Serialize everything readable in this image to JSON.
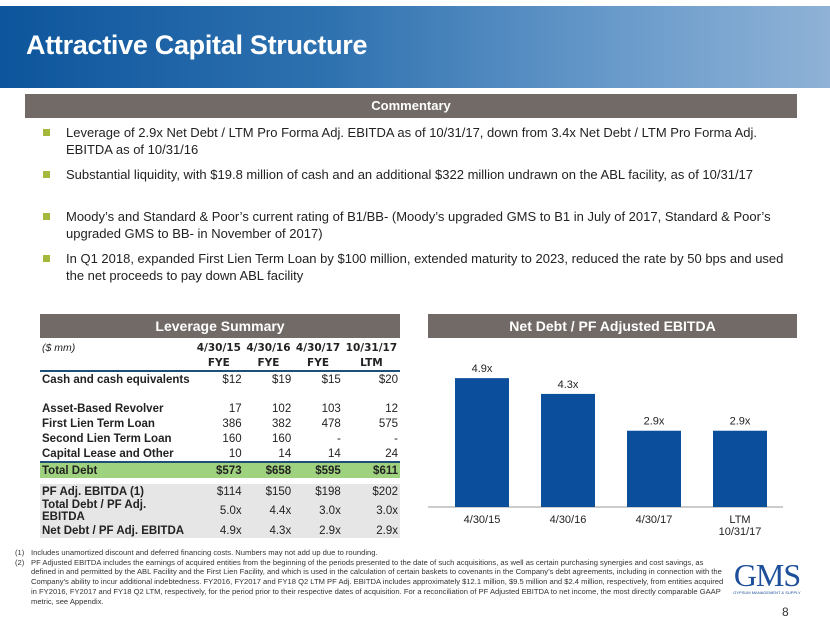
{
  "title": "Attractive Capital Structure",
  "commentary": {
    "header": "Commentary",
    "bullets": [
      "Leverage of 2.9x Net Debt / LTM Pro Forma Adj. EBITDA as of 10/31/17, down from 3.4x Net Debt / LTM Pro Forma Adj. EBITDA as of 10/31/16",
      "Substantial liquidity, with $19.8 million of cash and an additional $322 million undrawn on the ABL facility, as of 10/31/17",
      "Moody’s and Standard & Poor’s current rating of B1/BB- (Moody’s upgraded GMS to B1 in July of 2017, Standard & Poor’s upgraded GMS to BB- in November of 2017)",
      "In Q1 2018, expanded First Lien Term Loan by $100 million, extended maturity to 2023, reduced the rate by 50 bps and used the net proceeds to pay down ABL facility"
    ],
    "bullet_color": "#a5b83c"
  },
  "leverage": {
    "header": "Leverage Summary",
    "unit": "($ mm)",
    "columns": [
      [
        "4/30/15",
        "FYE"
      ],
      [
        "4/30/16",
        "FYE"
      ],
      [
        "4/30/17",
        "FYE"
      ],
      [
        "10/31/17",
        "LTM"
      ]
    ],
    "cash": {
      "label": "Cash and cash equivalents",
      "values": [
        "$12",
        "$19",
        "$15",
        "$20"
      ]
    },
    "debt_rows": [
      {
        "label": "Asset-Based Revolver",
        "values": [
          "17",
          "102",
          "103",
          "12"
        ]
      },
      {
        "label": "First Lien Term Loan",
        "values": [
          "386",
          "382",
          "478",
          "575"
        ]
      },
      {
        "label": "Second Lien Term Loan",
        "values": [
          "160",
          "160",
          "-",
          "-"
        ]
      },
      {
        "label": "Capital Lease and Other",
        "values": [
          "10",
          "14",
          "14",
          "24"
        ]
      }
    ],
    "total": {
      "label": "Total Debt",
      "values": [
        "$573",
        "$658",
        "$595",
        "$611"
      ]
    },
    "metrics": [
      {
        "label": "PF Adj. EBITDA (1)",
        "values": [
          "$114",
          "$150",
          "$198",
          "$202"
        ]
      },
      {
        "label": "Total Debt / PF Adj. EBITDA",
        "values": [
          "5.0x",
          "4.4x",
          "3.0x",
          "3.0x"
        ]
      },
      {
        "label": "Net Debt / PF Adj. EBITDA",
        "values": [
          "4.9x",
          "4.3x",
          "2.9x",
          "2.9x"
        ]
      }
    ]
  },
  "chart_data": {
    "type": "bar",
    "title": "Net Debt / PF Adjusted EBITDA",
    "categories": [
      "4/30/15",
      "4/30/16",
      "4/30/17",
      "LTM\n10/31/17"
    ],
    "values": [
      4.9,
      4.3,
      2.9,
      2.9
    ],
    "data_labels": [
      "4.9x",
      "4.3x",
      "2.9x",
      "2.9x"
    ],
    "ylim": [
      0,
      5.2
    ],
    "grid": false,
    "color": "#0b4f9c"
  },
  "footnotes": [
    {
      "n": "(1)",
      "text": "Includes unamortized discount and deferred financing costs. Numbers may not add up due to rounding."
    },
    {
      "n": "(2)",
      "text": "PF Adjusted EBITDA includes the earnings of acquired entities from the beginning of the periods presented to the date of such acquisitions, as well as certain purchasing synergies and cost savings, as defined in and permitted by the ABL Facility and the First Lien Facility, and which is used in the calculation of certain baskets to covenants in the Company’s debt agreements, including in connection with the Company’s ability to incur additional indebtedness. FY2016, FY2017 and FY18 Q2 LTM PF Adj. EBITDA includes approximately $12.1 million, $9.5 million and $2.4 million, respectively, from entities acquired in FY2016, FY2017 and FY18 Q2 LTM, respectively, for the period prior to their respective dates of acquisition. For a reconciliation of PF Adjusted EBITDA to net income, the most directly comparable GAAP metric, see Appendix."
    }
  ],
  "logo": {
    "name": "GMS",
    "tagline": "GYPSUM MANAGEMENT & SUPPLY"
  },
  "page_number": "8"
}
